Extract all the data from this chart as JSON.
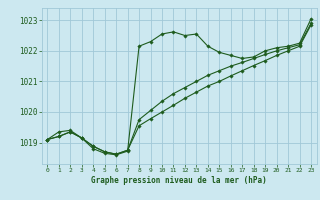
{
  "title": "Graphe pression niveau de la mer (hPa)",
  "ylim": [
    1018.3,
    1023.4
  ],
  "yticks": [
    1019,
    1020,
    1021,
    1022,
    1023
  ],
  "xticks": [
    0,
    1,
    2,
    3,
    4,
    5,
    6,
    7,
    8,
    9,
    10,
    11,
    12,
    13,
    14,
    15,
    16,
    17,
    18,
    19,
    20,
    21,
    22,
    23
  ],
  "bg_color": "#cce8f0",
  "grid_color": "#a0c8d8",
  "line_color": "#1e5c1e",
  "series1_x": [
    0,
    1,
    2,
    3,
    4,
    5,
    6,
    7,
    8,
    9,
    10,
    11,
    12,
    13,
    14,
    15,
    16,
    17,
    18,
    19,
    20,
    21,
    22,
    23
  ],
  "series1_y": [
    1019.1,
    1019.35,
    1019.4,
    1019.15,
    1018.8,
    1018.65,
    1018.6,
    1018.72,
    1022.15,
    1022.3,
    1022.55,
    1022.62,
    1022.5,
    1022.55,
    1022.15,
    1021.95,
    1021.85,
    1021.75,
    1021.8,
    1022.0,
    1022.1,
    1022.15,
    1022.25,
    1023.05
  ],
  "series2_x": [
    0,
    1,
    2,
    3,
    4,
    5,
    6,
    7,
    8,
    9,
    10,
    11,
    12,
    13,
    14,
    15,
    16,
    17,
    18,
    19,
    20,
    21,
    22,
    23
  ],
  "series2_y": [
    1019.1,
    1019.2,
    1019.35,
    1019.15,
    1018.88,
    1018.7,
    1018.62,
    1018.75,
    1019.75,
    1020.05,
    1020.35,
    1020.6,
    1020.8,
    1021.0,
    1021.2,
    1021.35,
    1021.5,
    1021.62,
    1021.75,
    1021.88,
    1022.0,
    1022.1,
    1022.2,
    1022.9
  ],
  "series3_x": [
    0,
    1,
    2,
    3,
    4,
    5,
    6,
    7,
    8,
    9,
    10,
    11,
    12,
    13,
    14,
    15,
    16,
    17,
    18,
    19,
    20,
    21,
    22,
    23
  ],
  "series3_y": [
    1019.1,
    1019.2,
    1019.35,
    1019.15,
    1018.88,
    1018.7,
    1018.62,
    1018.75,
    1019.55,
    1019.78,
    1020.0,
    1020.22,
    1020.45,
    1020.65,
    1020.85,
    1021.0,
    1021.18,
    1021.35,
    1021.52,
    1021.68,
    1021.85,
    1022.0,
    1022.15,
    1022.85
  ]
}
